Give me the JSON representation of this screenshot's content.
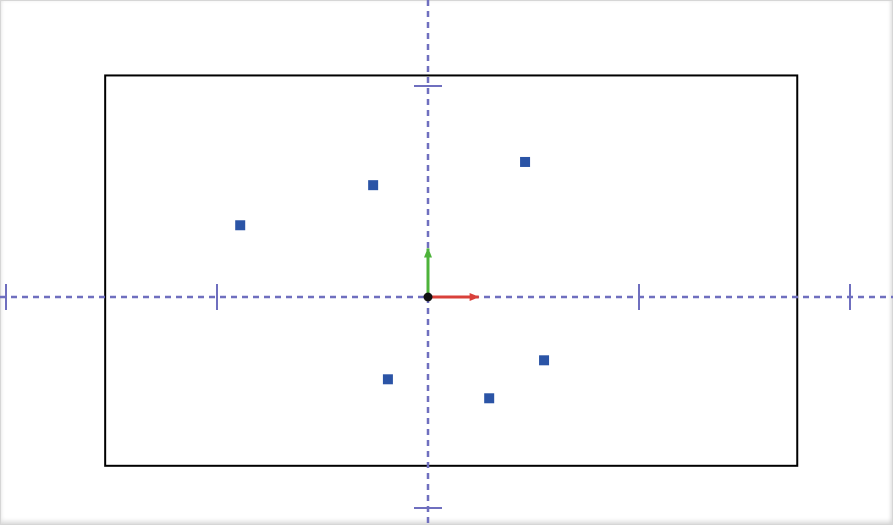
{
  "colors": {
    "axis": "#6f6fbf",
    "point": "#2b54a6",
    "border": "#000000",
    "x_arrow": "#d9403a",
    "y_arrow": "#4db33a",
    "origin": "#111111"
  },
  "canvas": {
    "x_ticks": [
      -2,
      -1,
      1,
      2
    ],
    "y_ticks": [
      -1,
      1
    ],
    "points": [
      {
        "x": -0.89,
        "y": 0.34
      },
      {
        "x": -0.26,
        "y": 0.53
      },
      {
        "x": 0.46,
        "y": 0.64
      },
      {
        "x": -0.19,
        "y": -0.39
      },
      {
        "x": 0.29,
        "y": -0.48
      },
      {
        "x": 0.55,
        "y": -0.3
      }
    ],
    "rect": {
      "x_min": -1.53,
      "x_max": 1.75,
      "y_min": -0.8,
      "y_max": 1.05
    },
    "x_arrow_length": 0.24,
    "y_arrow_length": 0.23
  }
}
